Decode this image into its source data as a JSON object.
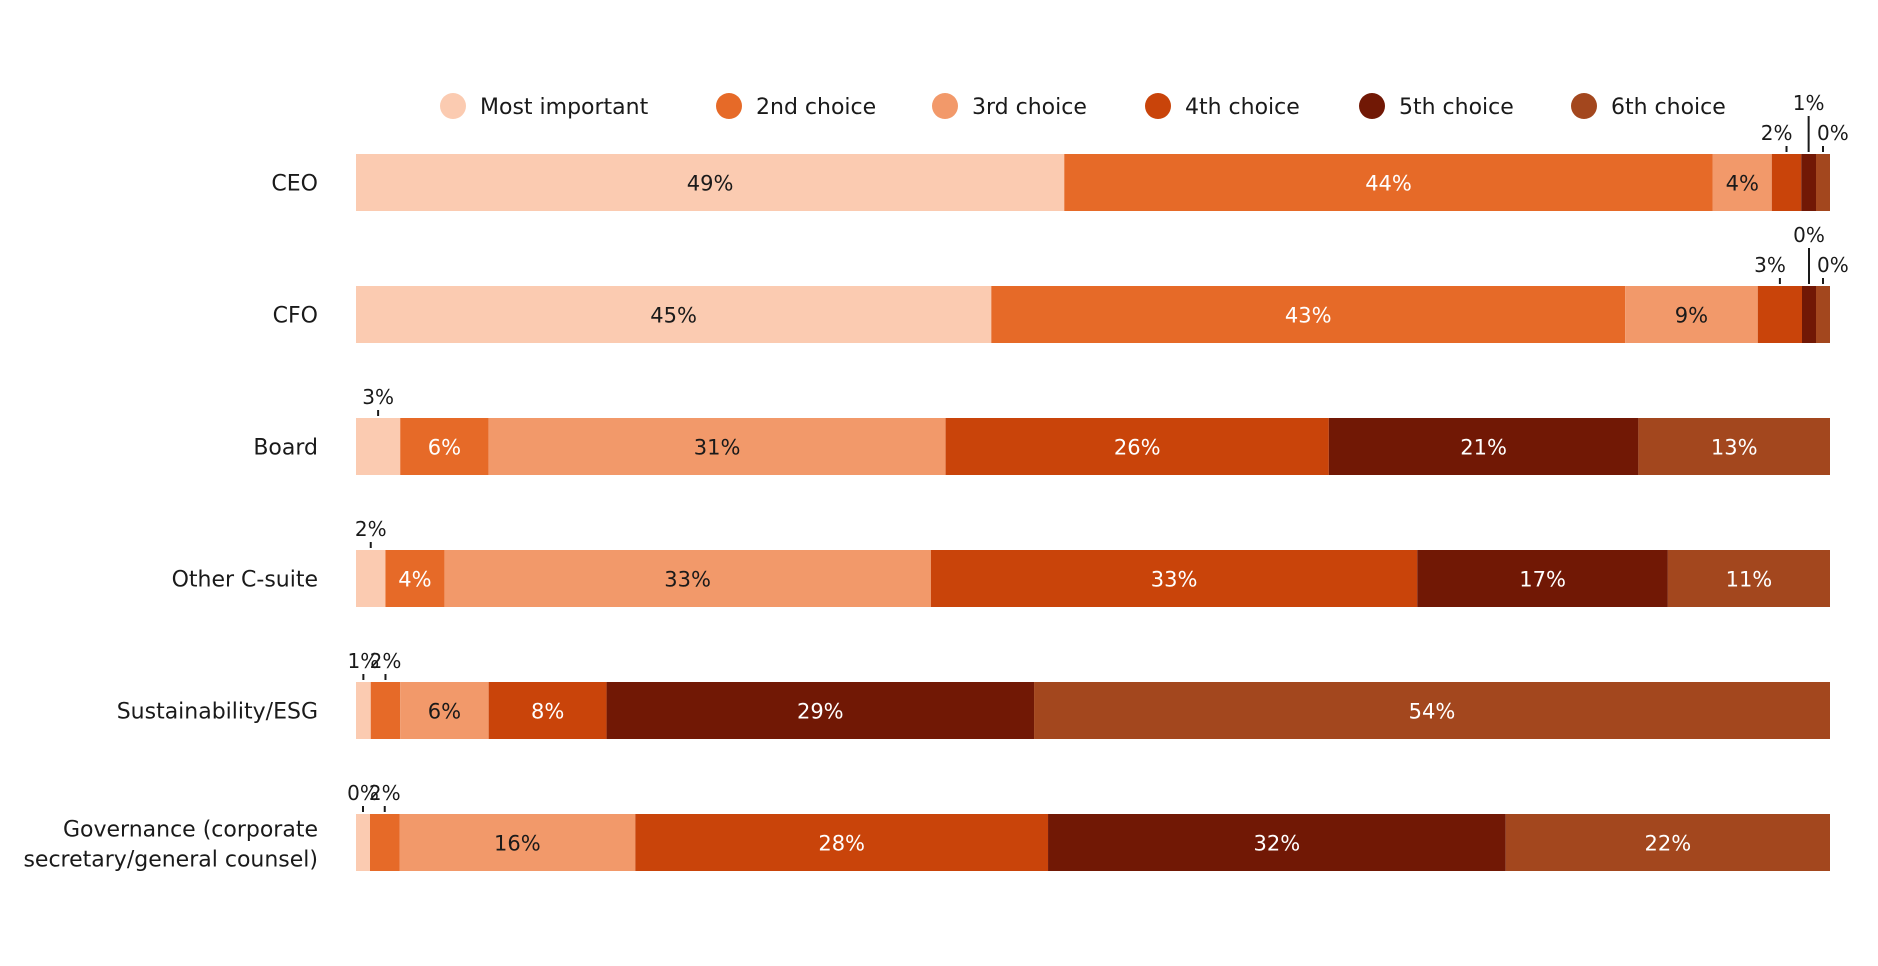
{
  "chart_data": {
    "type": "bar",
    "orientation": "horizontal",
    "stacked": true,
    "title": "",
    "xlabel": "",
    "ylabel": "",
    "xlim": [
      0,
      100
    ],
    "grid": false,
    "legend": "top",
    "value_suffix": "%",
    "categories": [
      "CEO",
      "CFO",
      "Board",
      "Other C-suite",
      "Sustainability/ESG",
      "Governance (corporate secretary/general counsel)"
    ],
    "series": [
      {
        "name": "Most important",
        "color": "#FBCBB1",
        "values": [
          49,
          45,
          3,
          2,
          1,
          0
        ]
      },
      {
        "name": "2nd choice",
        "color": "#E66A28",
        "values": [
          44,
          43,
          6,
          4,
          2,
          2
        ]
      },
      {
        "name": "3rd choice",
        "color": "#F2996A",
        "values": [
          4,
          9,
          31,
          33,
          6,
          16
        ]
      },
      {
        "name": "4th choice",
        "color": "#C9440A",
        "values": [
          2,
          3,
          26,
          33,
          8,
          28
        ]
      },
      {
        "name": "5th choice",
        "color": "#711805",
        "values": [
          1,
          0,
          21,
          17,
          29,
          32
        ]
      },
      {
        "name": "6th choice",
        "color": "#A3471E",
        "values": [
          0,
          0,
          13,
          11,
          54,
          22
        ]
      }
    ]
  }
}
